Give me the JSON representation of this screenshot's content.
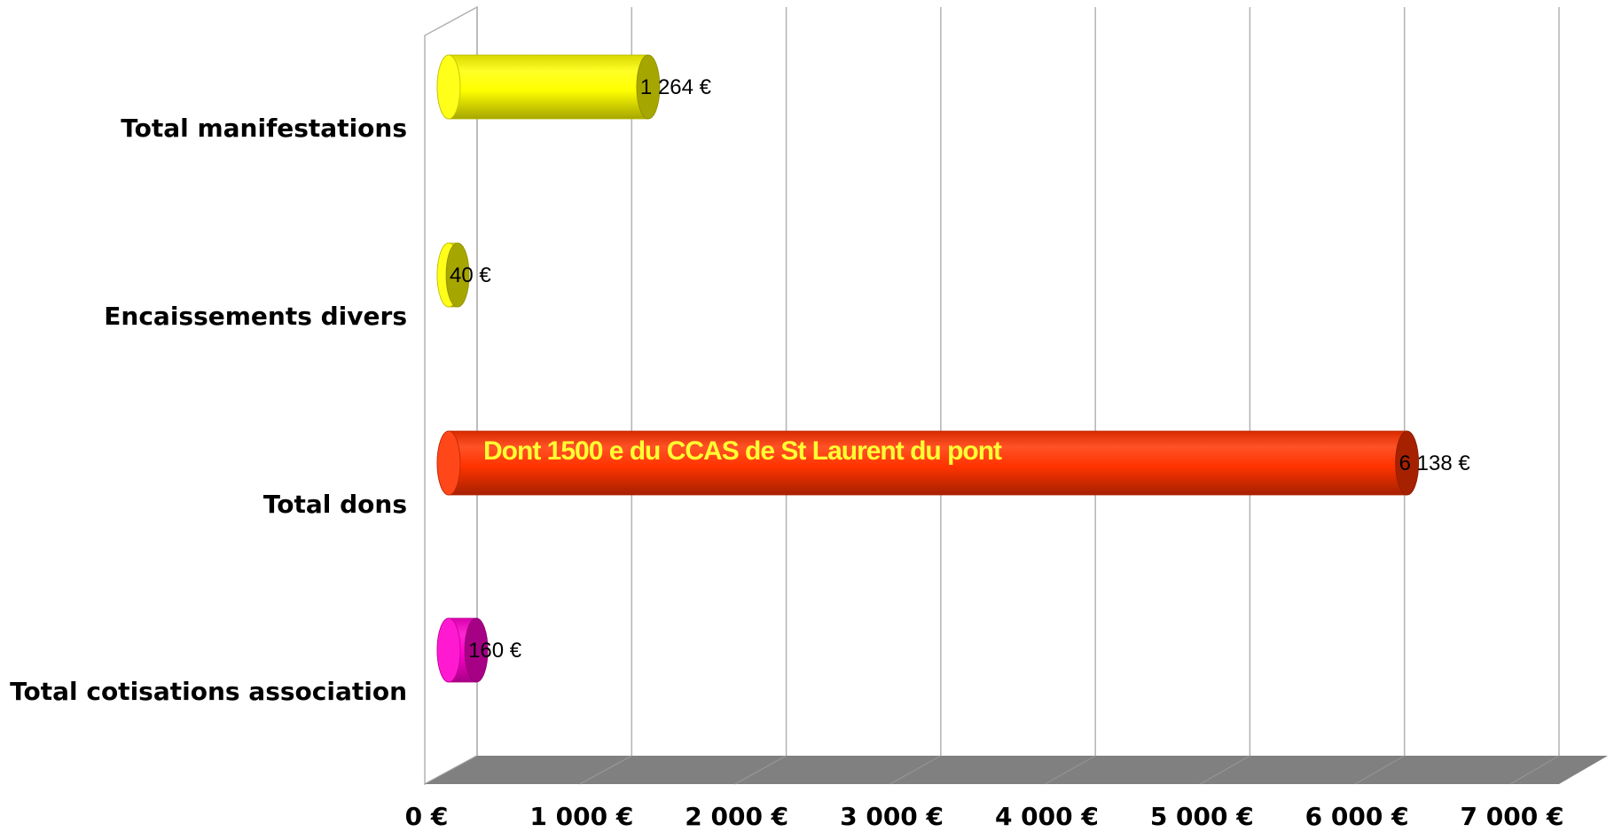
{
  "chart_data": {
    "type": "bar",
    "orientation": "horizontal",
    "style": "3d-cylinder",
    "categories": [
      "Total manifestations",
      "Encaissements divers",
      "Total dons",
      "Total cotisations association"
    ],
    "values": [
      1264,
      40,
      6138,
      160
    ],
    "data_labels": [
      "1 264 €",
      "40 €",
      "6 138 €",
      "160 €"
    ],
    "colors": [
      "#ffff00",
      "#ffff00",
      "#ff3300",
      "#ff00cc"
    ],
    "xlim": [
      0,
      7000
    ],
    "x_ticks": [
      0,
      1000,
      2000,
      3000,
      4000,
      5000,
      6000,
      7000
    ],
    "x_tick_labels": [
      "0 €",
      "1 000 €",
      "2 000 €",
      "3 000 €",
      "4 000 €",
      "5 000 €",
      "6 000 €",
      "7 000 €"
    ],
    "grid": true,
    "legend": "none",
    "annotations": [
      {
        "text": "Dont 1500 e du CCAS de St Laurent du pont",
        "category": "Total dons"
      }
    ],
    "colors_floor": "#808080",
    "colors_grid": "#b3b3b3"
  }
}
